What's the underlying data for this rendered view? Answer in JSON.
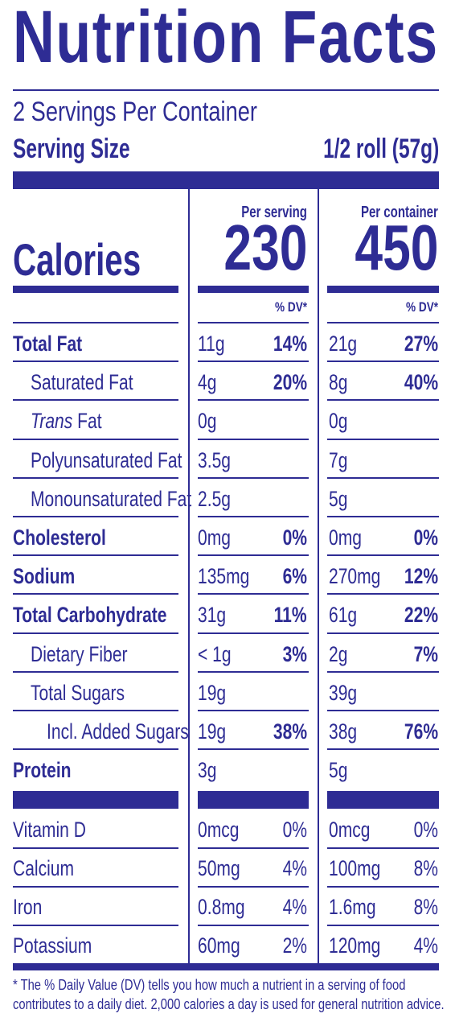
{
  "title": "Nutrition Facts",
  "servings_per_container": "2 Servings Per Container",
  "serving_size": {
    "label": "Serving Size",
    "value": "1/2 roll (57g)"
  },
  "calories": {
    "label": "Calories",
    "per_serving_heading": "Per serving",
    "per_container_heading": "Per container",
    "per_serving": "230",
    "per_container": "450"
  },
  "dv_heading": "% DV*",
  "nutrients": [
    {
      "name": "Total Fat",
      "bold": true,
      "italic_prefix": "",
      "indent": 0,
      "serving_amount": "11g",
      "serving_dv": "14%",
      "container_amount": "21g",
      "container_dv": "27%"
    },
    {
      "name": "Saturated Fat",
      "bold": false,
      "italic_prefix": "",
      "indent": 1,
      "serving_amount": "4g",
      "serving_dv": "20%",
      "container_amount": "8g",
      "container_dv": "40%"
    },
    {
      "name": " Fat",
      "bold": false,
      "italic_prefix": "Trans",
      "indent": 1,
      "serving_amount": "0g",
      "serving_dv": "",
      "container_amount": "0g",
      "container_dv": ""
    },
    {
      "name": "Polyunsaturated Fat",
      "bold": false,
      "italic_prefix": "",
      "indent": 1,
      "serving_amount": "3.5g",
      "serving_dv": "",
      "container_amount": "7g",
      "container_dv": ""
    },
    {
      "name": "Monounsaturated Fat",
      "bold": false,
      "italic_prefix": "",
      "indent": 1,
      "serving_amount": "2.5g",
      "serving_dv": "",
      "container_amount": "5g",
      "container_dv": ""
    },
    {
      "name": "Cholesterol",
      "bold": true,
      "italic_prefix": "",
      "indent": 0,
      "serving_amount": "0mg",
      "serving_dv": "0%",
      "container_amount": "0mg",
      "container_dv": "0%"
    },
    {
      "name": "Sodium",
      "bold": true,
      "italic_prefix": "",
      "indent": 0,
      "serving_amount": "135mg",
      "serving_dv": "6%",
      "container_amount": "270mg",
      "container_dv": "12%"
    },
    {
      "name": "Total Carbohydrate",
      "bold": true,
      "italic_prefix": "",
      "indent": 0,
      "serving_amount": "31g",
      "serving_dv": "11%",
      "container_amount": "61g",
      "container_dv": "22%"
    },
    {
      "name": "Dietary Fiber",
      "bold": false,
      "italic_prefix": "",
      "indent": 1,
      "serving_amount": "< 1g",
      "serving_dv": "3%",
      "container_amount": "2g",
      "container_dv": "7%"
    },
    {
      "name": "Total Sugars",
      "bold": false,
      "italic_prefix": "",
      "indent": 1,
      "serving_amount": "19g",
      "serving_dv": "",
      "container_amount": "39g",
      "container_dv": ""
    },
    {
      "name": "Incl. Added Sugars",
      "bold": false,
      "italic_prefix": "",
      "indent": 2,
      "serving_amount": "19g",
      "serving_dv": "38%",
      "container_amount": "38g",
      "container_dv": "76%"
    },
    {
      "name": "Protein",
      "bold": true,
      "italic_prefix": "",
      "indent": 0,
      "serving_amount": "3g",
      "serving_dv": "",
      "container_amount": "5g",
      "container_dv": ""
    }
  ],
  "vitamins": [
    {
      "name": "Vitamin D",
      "serving_amount": "0mcg",
      "serving_dv": "0%",
      "container_amount": "0mcg",
      "container_dv": "0%"
    },
    {
      "name": "Calcium",
      "serving_amount": "50mg",
      "serving_dv": "4%",
      "container_amount": "100mg",
      "container_dv": "8%"
    },
    {
      "name": "Iron",
      "serving_amount": "0.8mg",
      "serving_dv": "4%",
      "container_amount": "1.6mg",
      "container_dv": "8%"
    },
    {
      "name": "Potassium",
      "serving_amount": "60mg",
      "serving_dv": "2%",
      "container_amount": "120mg",
      "container_dv": "4%"
    }
  ],
  "footnote": [
    "* The % Daily Value (DV) tells you how much a nutrient in a serving of food",
    "contributes to a daily diet. 2,000 calories a day is used for general nutrition advice."
  ],
  "colors": {
    "ink": "#2e2c94",
    "background": "#ffffff"
  }
}
